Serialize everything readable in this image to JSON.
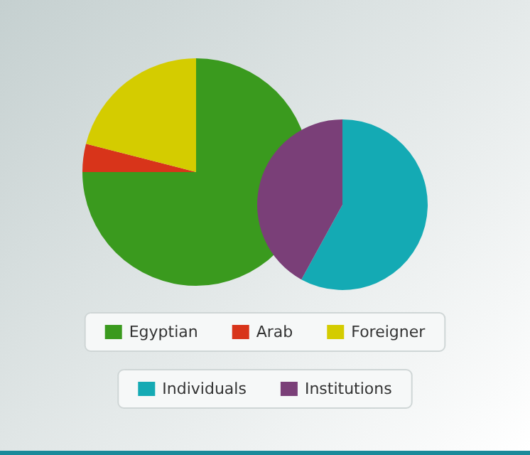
{
  "chart_data": [
    {
      "type": "pie",
      "categories": [
        "Egyptian",
        "Arab",
        "Foreigner"
      ],
      "values": [
        75,
        4,
        21
      ],
      "colors": [
        "#3a9a1e",
        "#d8341a",
        "#d4cc00"
      ],
      "legend": "bottom"
    },
    {
      "type": "pie",
      "categories": [
        "Individuals",
        "Institutions"
      ],
      "values": [
        58,
        42
      ],
      "colors": [
        "#14aab4",
        "#7a3f78"
      ],
      "legend": "bottom"
    }
  ]
}
